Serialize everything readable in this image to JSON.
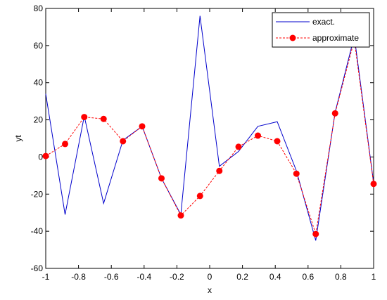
{
  "chart_data": {
    "type": "line",
    "xlabel": "x",
    "ylabel": "yt",
    "xlim": [
      -1,
      1
    ],
    "ylim": [
      -60,
      80
    ],
    "xticks": [
      -1,
      -0.8,
      -0.6,
      -0.4,
      -0.2,
      0,
      0.2,
      0.4,
      0.6,
      0.8,
      1
    ],
    "xtick_labels": [
      "-1",
      "-0.8",
      "-0.6",
      "-0.4",
      "-0.2",
      "0",
      "0.2",
      "0.4",
      "0.6",
      "0.8",
      "1"
    ],
    "yticks": [
      -60,
      -40,
      -20,
      0,
      20,
      40,
      60,
      80
    ],
    "ytick_labels": [
      "-60",
      "-40",
      "-20",
      "0",
      "20",
      "40",
      "60",
      "80"
    ],
    "grid": false,
    "legend_position": "top-right",
    "series": [
      {
        "name": "exact.",
        "style": "solid",
        "color": "#0000cc",
        "x": [
          -1,
          -0.882,
          -0.765,
          -0.647,
          -0.529,
          -0.412,
          -0.294,
          -0.176,
          -0.059,
          0.059,
          0.176,
          0.294,
          0.412,
          0.529,
          0.647,
          0.765,
          0.882,
          1
        ],
        "y": [
          34,
          -31,
          22,
          -25,
          9,
          16.5,
          -11.5,
          -31,
          76,
          -5,
          3,
          16.5,
          19,
          -7.5,
          -45,
          24,
          65,
          -14
        ]
      },
      {
        "name": "approximate",
        "style": "dashed",
        "marker": "circle",
        "color": "#ff0000",
        "x": [
          -1,
          -0.882,
          -0.765,
          -0.647,
          -0.529,
          -0.412,
          -0.294,
          -0.176,
          -0.059,
          0.059,
          0.176,
          0.294,
          0.412,
          0.529,
          0.647,
          0.765,
          0.882,
          1
        ],
        "y": [
          0.5,
          7,
          21.5,
          20.5,
          8.5,
          16.5,
          -11.5,
          -31.5,
          -21,
          -7.5,
          5.5,
          11.5,
          8.5,
          -9,
          -41.5,
          23.5,
          63,
          -14.5
        ]
      }
    ]
  }
}
